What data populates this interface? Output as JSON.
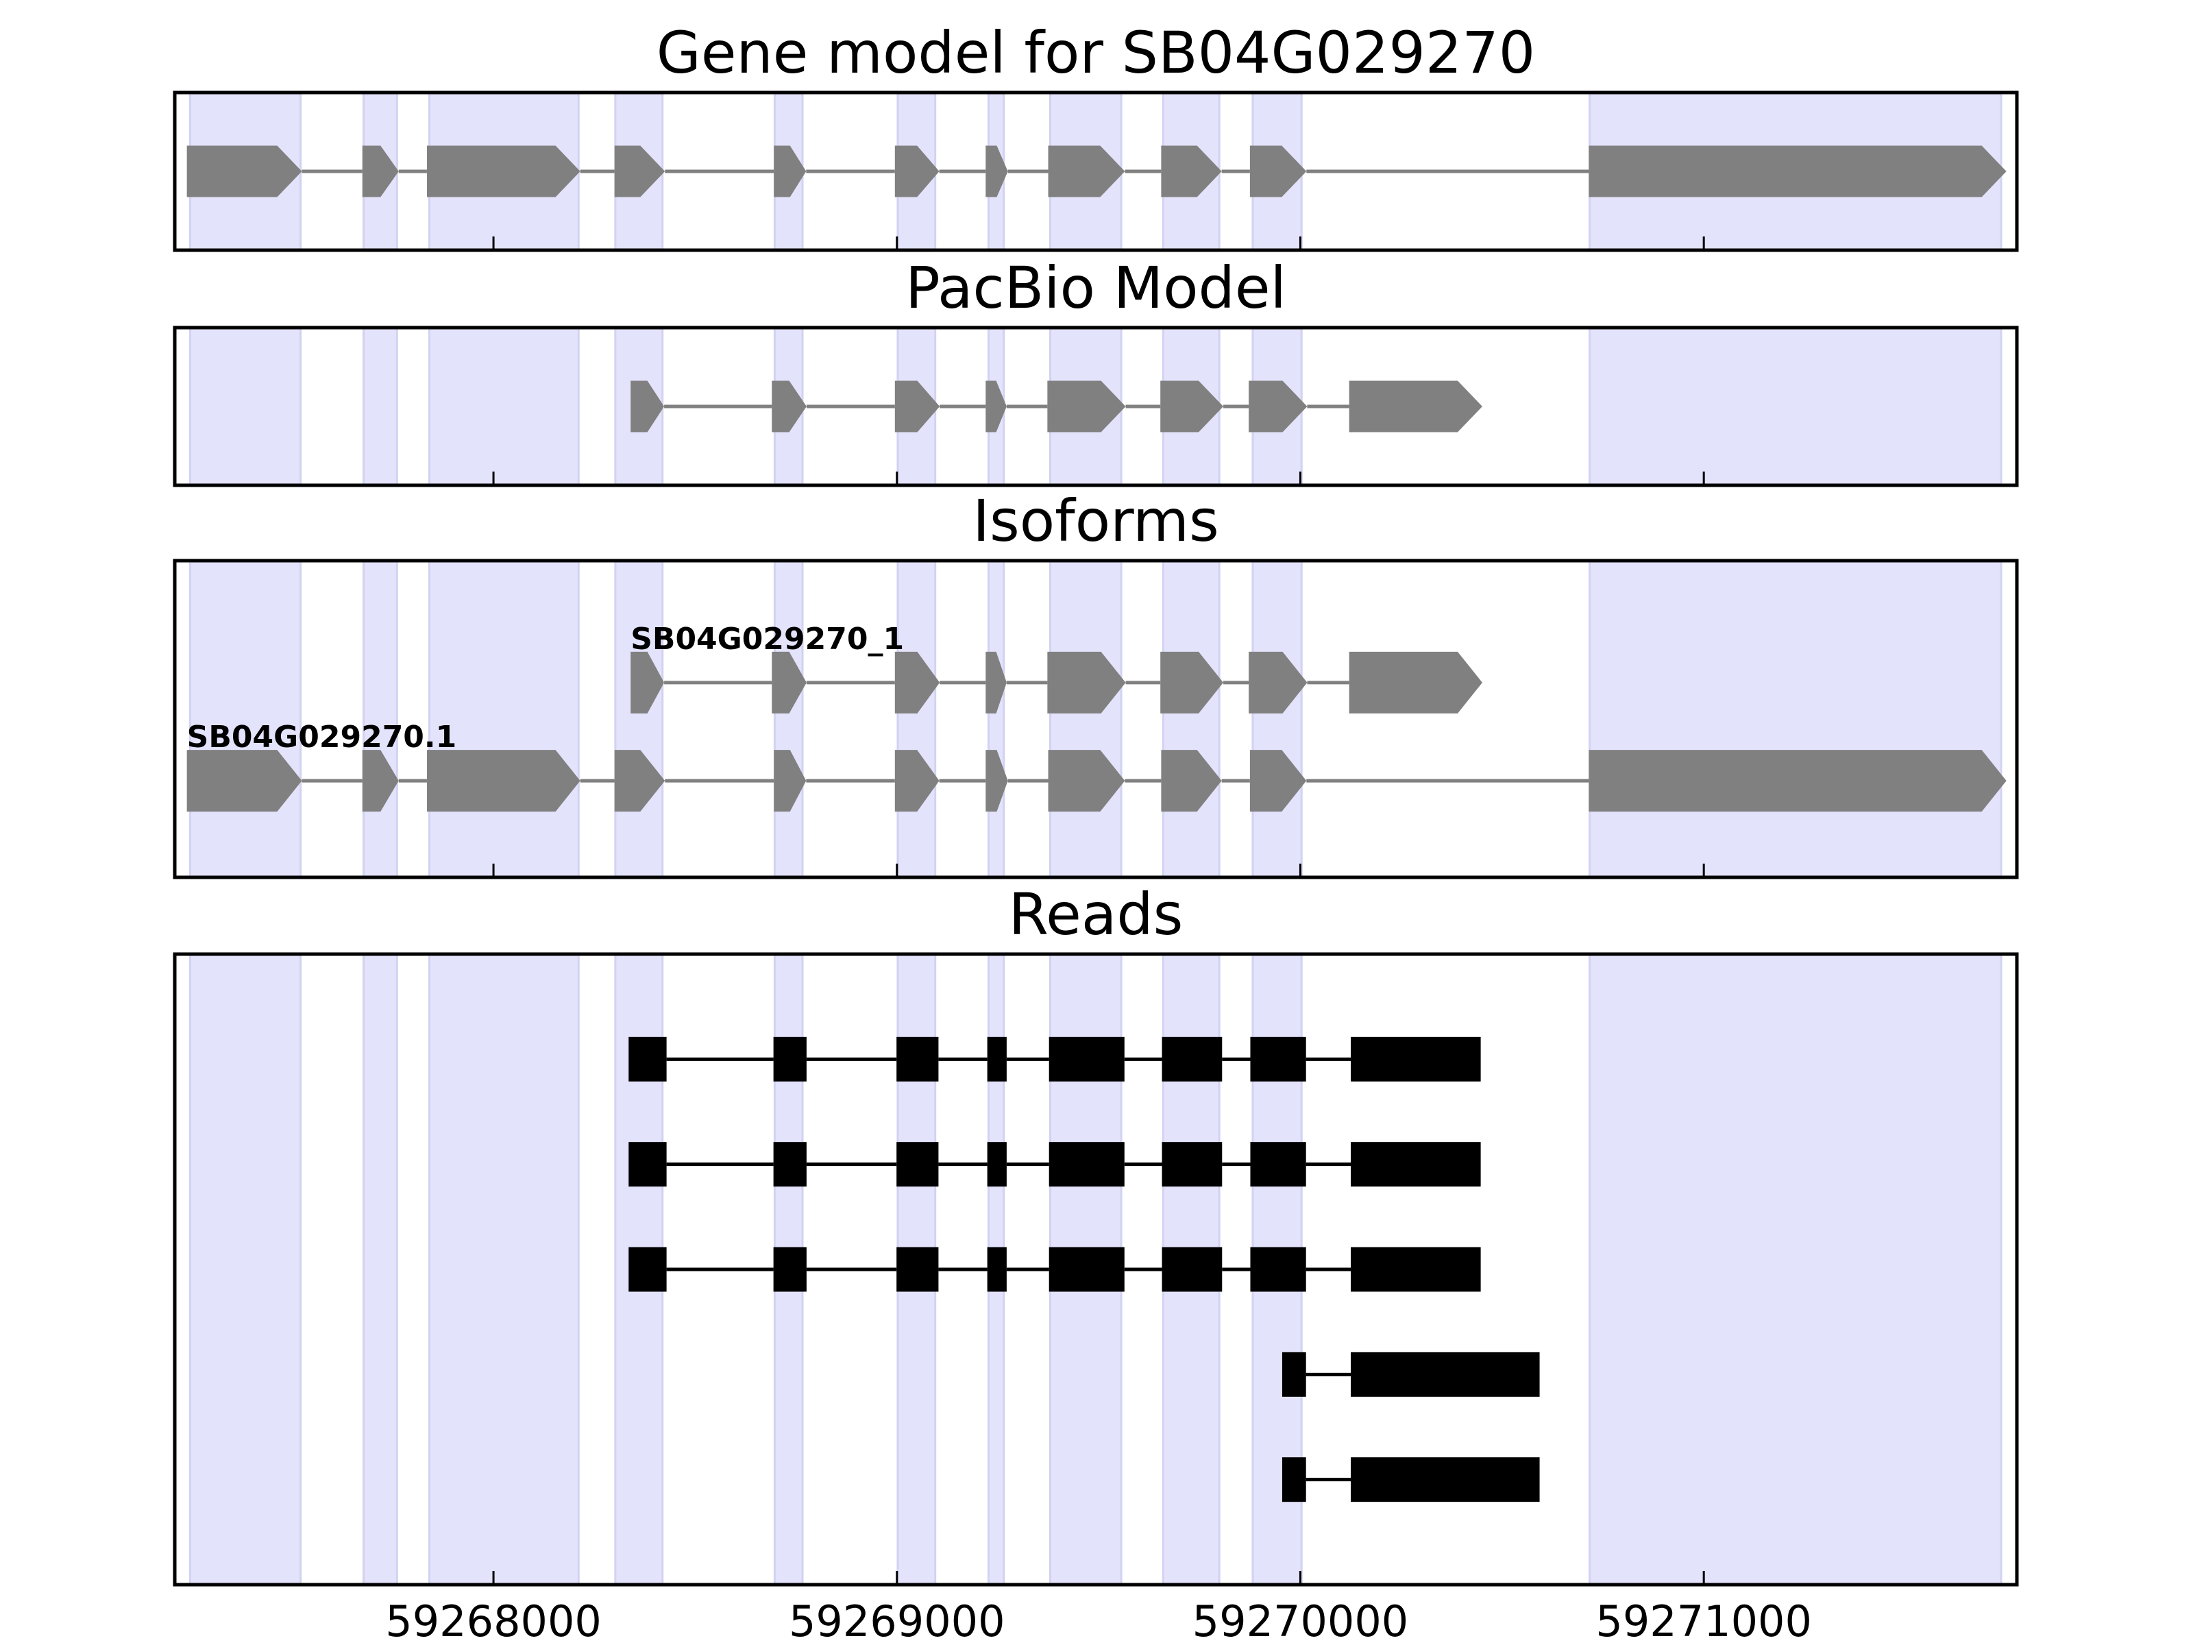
{
  "chart_data": {
    "type": "gene-tracks",
    "xlim": [
      59267210,
      59271776
    ],
    "xticks": [
      59268000,
      59269000,
      59270000,
      59271000
    ],
    "shaded": [
      [
        59267248,
        59267522
      ],
      [
        59267678,
        59267761
      ],
      [
        59267841,
        59268211
      ],
      [
        59268302,
        59268419
      ],
      [
        59268697,
        59268766
      ],
      [
        59269002,
        59269095
      ],
      [
        59269227,
        59269265
      ],
      [
        59269380,
        59269556
      ],
      [
        59269660,
        59269799
      ],
      [
        59269882,
        59270003
      ],
      [
        59270717,
        59271737
      ]
    ],
    "panels": [
      {
        "title": "Gene model for SB04G029270",
        "style": "arrow",
        "color": "#808080",
        "tracks": [
          {
            "exons": [
              [
                59267240,
                59267525
              ],
              [
                59267675,
                59267765
              ],
              [
                59267835,
                59268215
              ],
              [
                59268300,
                59268425
              ],
              [
                59268695,
                59268775
              ],
              [
                59268995,
                59269105
              ],
              [
                59269220,
                59269275
              ],
              [
                59269375,
                59269565
              ],
              [
                59269655,
                59269805
              ],
              [
                59269875,
                59270015
              ],
              [
                59270715,
                59271750
              ]
            ]
          }
        ]
      },
      {
        "title": "PacBio Model",
        "style": "arrow",
        "color": "#808080",
        "tracks": [
          {
            "exons": [
              [
                59268340,
                59268423
              ],
              [
                59268690,
                59268776
              ],
              [
                59268995,
                59269106
              ],
              [
                59269220,
                59269272
              ],
              [
                59269373,
                59269567
              ],
              [
                59269653,
                59269809
              ],
              [
                59269872,
                59270017
              ],
              [
                59270121,
                59270451
              ]
            ]
          }
        ]
      },
      {
        "title": "Isoforms",
        "style": "arrow",
        "color": "#808080",
        "tracks": [
          {
            "name": "SB04G029270_1",
            "exons": [
              [
                59268340,
                59268423
              ],
              [
                59268690,
                59268776
              ],
              [
                59268995,
                59269106
              ],
              [
                59269220,
                59269272
              ],
              [
                59269373,
                59269567
              ],
              [
                59269653,
                59269809
              ],
              [
                59269872,
                59270017
              ],
              [
                59270121,
                59270451
              ]
            ]
          },
          {
            "name": "SB04G029270.1",
            "exons": [
              [
                59267240,
                59267525
              ],
              [
                59267675,
                59267765
              ],
              [
                59267835,
                59268215
              ],
              [
                59268300,
                59268425
              ],
              [
                59268695,
                59268775
              ],
              [
                59268995,
                59269105
              ],
              [
                59269220,
                59269275
              ],
              [
                59269375,
                59269565
              ],
              [
                59269655,
                59269805
              ],
              [
                59269875,
                59270015
              ],
              [
                59270715,
                59271750
              ]
            ]
          }
        ]
      },
      {
        "title": "Reads",
        "style": "box",
        "color": "#000000",
        "tracks": [
          {
            "exons": [
              [
                59268335,
                59268429
              ],
              [
                59268694,
                59268776
              ],
              [
                59268999,
                59269103
              ],
              [
                59269224,
                59269272
              ],
              [
                59269377,
                59269564
              ],
              [
                59269657,
                59269806
              ],
              [
                59269876,
                59270014
              ],
              [
                59270125,
                59270447
              ]
            ]
          },
          {
            "exons": [
              [
                59268335,
                59268429
              ],
              [
                59268694,
                59268776
              ],
              [
                59268999,
                59269103
              ],
              [
                59269224,
                59269272
              ],
              [
                59269377,
                59269564
              ],
              [
                59269657,
                59269806
              ],
              [
                59269876,
                59270014
              ],
              [
                59270125,
                59270447
              ]
            ]
          },
          {
            "exons": [
              [
                59268335,
                59268429
              ],
              [
                59268694,
                59268776
              ],
              [
                59268999,
                59269103
              ],
              [
                59269224,
                59269272
              ],
              [
                59269377,
                59269564
              ],
              [
                59269657,
                59269806
              ],
              [
                59269876,
                59270014
              ],
              [
                59270125,
                59270447
              ]
            ]
          },
          {
            "exons": [
              [
                59269955,
                59270014
              ],
              [
                59270125,
                59270593
              ]
            ]
          },
          {
            "exons": [
              [
                59269955,
                59270014
              ],
              [
                59270125,
                59270593
              ]
            ]
          }
        ]
      }
    ]
  }
}
